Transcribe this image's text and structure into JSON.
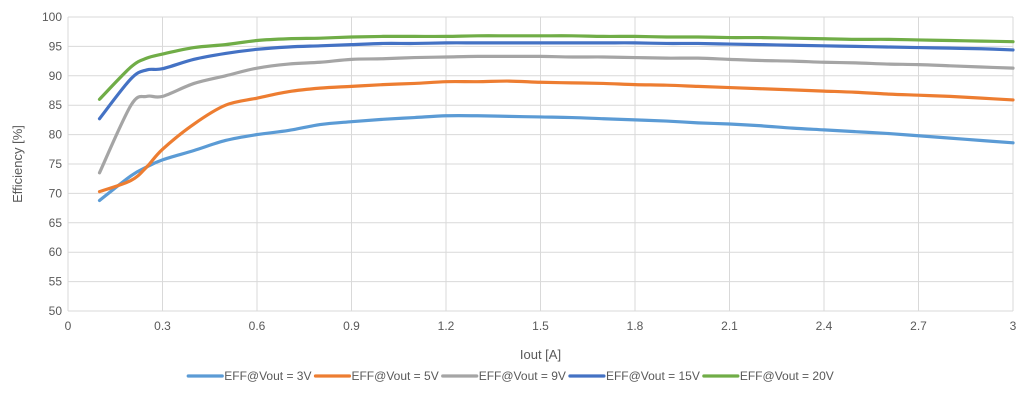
{
  "chart_data": {
    "type": "line",
    "xlabel": "Iout [A]",
    "ylabel": "Efficiency [%]",
    "xlim": [
      0,
      3
    ],
    "ylim": [
      50,
      100
    ],
    "x_ticks": [
      "0",
      "0.3",
      "0.6",
      "0.9",
      "1.2",
      "1.5",
      "1.8",
      "2.1",
      "2.4",
      "2.7",
      "3"
    ],
    "y_ticks": [
      "50",
      "55",
      "60",
      "65",
      "70",
      "75",
      "80",
      "85",
      "90",
      "95",
      "100"
    ],
    "grid": true,
    "legend_position": "bottom",
    "x": [
      0.1,
      0.2,
      0.25,
      0.3,
      0.4,
      0.5,
      0.6,
      0.7,
      0.8,
      0.9,
      1.0,
      1.1,
      1.2,
      1.3,
      1.4,
      1.5,
      1.6,
      1.7,
      1.8,
      1.9,
      2.0,
      2.1,
      2.2,
      2.3,
      2.4,
      2.5,
      2.6,
      2.7,
      2.8,
      2.9,
      3.0
    ],
    "series": [
      {
        "name": "EFF@Vout = 3V",
        "color": "#5B9BD5",
        "values": [
          68.8,
          73.0,
          74.5,
          75.7,
          77.3,
          79.0,
          80.0,
          80.7,
          81.7,
          82.2,
          82.6,
          82.9,
          83.2,
          83.2,
          83.1,
          83.0,
          82.9,
          82.7,
          82.5,
          82.3,
          82.0,
          81.8,
          81.5,
          81.1,
          80.8,
          80.5,
          80.2,
          79.8,
          79.4,
          79.0,
          78.6
        ]
      },
      {
        "name": "EFF@Vout = 5V",
        "color": "#ED7D31",
        "values": [
          70.3,
          72.2,
          74.5,
          77.5,
          81.8,
          85.0,
          86.2,
          87.3,
          87.9,
          88.2,
          88.5,
          88.7,
          89.0,
          89.0,
          89.1,
          88.9,
          88.8,
          88.7,
          88.5,
          88.4,
          88.2,
          88.0,
          87.8,
          87.6,
          87.4,
          87.2,
          86.9,
          86.7,
          86.5,
          86.2,
          85.9
        ]
      },
      {
        "name": "EFF@Vout = 9V",
        "color": "#A5A5A5",
        "values": [
          73.5,
          85.0,
          86.5,
          86.5,
          88.7,
          90.0,
          91.3,
          92.0,
          92.3,
          92.8,
          92.9,
          93.1,
          93.2,
          93.3,
          93.3,
          93.3,
          93.2,
          93.2,
          93.1,
          93.0,
          93.0,
          92.8,
          92.6,
          92.5,
          92.3,
          92.2,
          92.0,
          91.9,
          91.7,
          91.5,
          91.3
        ]
      },
      {
        "name": "EFF@Vout = 15V",
        "color": "#4472C4",
        "values": [
          82.7,
          89.5,
          91.0,
          91.2,
          92.8,
          93.8,
          94.5,
          94.9,
          95.1,
          95.3,
          95.5,
          95.5,
          95.6,
          95.6,
          95.6,
          95.6,
          95.6,
          95.6,
          95.6,
          95.5,
          95.5,
          95.4,
          95.3,
          95.2,
          95.1,
          95.0,
          94.9,
          94.8,
          94.7,
          94.6,
          94.4
        ]
      },
      {
        "name": "EFF@Vout = 20V",
        "color": "#70AD47",
        "values": [
          86.0,
          91.5,
          93.0,
          93.7,
          94.8,
          95.3,
          96.0,
          96.3,
          96.4,
          96.6,
          96.7,
          96.7,
          96.7,
          96.8,
          96.8,
          96.8,
          96.8,
          96.7,
          96.7,
          96.6,
          96.6,
          96.5,
          96.5,
          96.4,
          96.3,
          96.2,
          96.2,
          96.1,
          96.0,
          95.9,
          95.8
        ]
      }
    ]
  }
}
